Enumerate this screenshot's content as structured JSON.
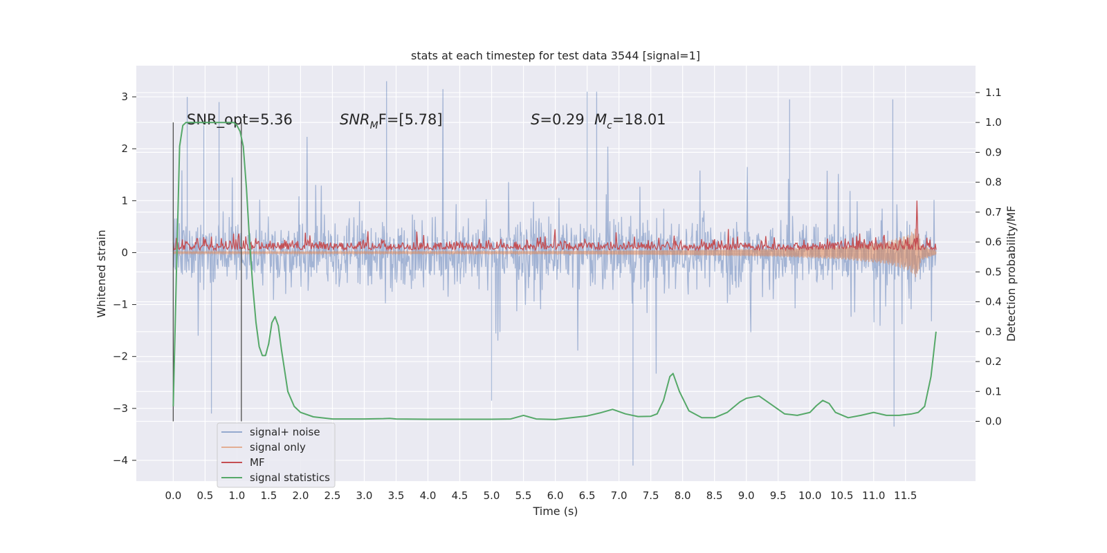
{
  "chart_data": {
    "type": "line",
    "title": "stats at each timestep for test data 3544 [signal=1]",
    "xlabel": "Time (s)",
    "ylabel_left": "Whitened strain",
    "ylabel_right": "Detection probability/MF",
    "xlim": [
      -0.58,
      12.6
    ],
    "ylim_left": [
      -4.4,
      3.6
    ],
    "ylim_right": [
      -0.2,
      1.19
    ],
    "x_ticks": [
      "0.0",
      "0.5",
      "1.0",
      "1.5",
      "2.0",
      "2.5",
      "3.0",
      "3.5",
      "4.0",
      "4.5",
      "5.0",
      "5.5",
      "6.0",
      "6.5",
      "7.0",
      "7.5",
      "8.0",
      "8.5",
      "9.0",
      "9.5",
      "10.0",
      "10.5",
      "11.0",
      "11.5"
    ],
    "y_ticks_left": [
      "3",
      "2",
      "1",
      "0",
      "−1",
      "−2",
      "−3",
      "−4"
    ],
    "y_ticks_right": [
      "1.1",
      "1.0",
      "0.9",
      "0.8",
      "0.7",
      "0.6",
      "0.5",
      "0.4",
      "0.3",
      "0.2",
      "0.1",
      "0.0"
    ],
    "grid": true,
    "legend_position": "lower-left",
    "annotations": {
      "snr_opt": "SNR_opt=5.36",
      "snr_mf_main": "SNR",
      "snr_mf_sub": "M",
      "snr_mf_tail": "F=[5.78]",
      "s_label": "S",
      "s_value": "=0.29",
      "mc_label": "M",
      "mc_sub": "c",
      "mc_value": "=18.01"
    },
    "vertical_markers": [
      0.0,
      1.07
    ],
    "series": [
      {
        "name": "signal+ noise",
        "color": "#4c72b0",
        "axis": "left",
        "style": "dense noise",
        "x_range": [
          0.0,
          11.98
        ],
        "typical_band": [
          -1.35,
          1.35
        ],
        "extreme_peaks": [
          {
            "x": 0.22,
            "y": 3.0
          },
          {
            "x": 0.48,
            "y": 2.45
          },
          {
            "x": 0.6,
            "y": -3.1
          },
          {
            "x": 0.72,
            "y": 2.9
          },
          {
            "x": 3.35,
            "y": 3.3
          },
          {
            "x": 5.0,
            "y": -2.85
          },
          {
            "x": 6.5,
            "y": 3.1
          },
          {
            "x": 6.65,
            "y": 3.1
          },
          {
            "x": 7.22,
            "y": -4.1
          },
          {
            "x": 9.68,
            "y": 2.95
          },
          {
            "x": 11.3,
            "y": 2.95
          },
          {
            "x": 11.32,
            "y": -3.35
          }
        ]
      },
      {
        "name": "signal only",
        "color": "#dd8452",
        "axis": "left",
        "style": "chirp",
        "x_range": [
          0.0,
          11.98
        ],
        "amplitude": [
          {
            "x": 0.0,
            "a": 0.02
          },
          {
            "x": 6.0,
            "a": 0.03
          },
          {
            "x": 8.0,
            "a": 0.05
          },
          {
            "x": 9.5,
            "a": 0.08
          },
          {
            "x": 10.5,
            "a": 0.13
          },
          {
            "x": 11.2,
            "a": 0.22
          },
          {
            "x": 11.55,
            "a": 0.35
          },
          {
            "x": 11.68,
            "a": 0.5
          },
          {
            "x": 11.75,
            "a": 0.15
          },
          {
            "x": 11.98,
            "a": 0.04
          }
        ]
      },
      {
        "name": "MF",
        "color": "#c44e52",
        "axis": "left",
        "style": "noisy band",
        "x_range": [
          0.0,
          11.98
        ],
        "baseline": 0.05,
        "typical_max": 0.5,
        "peaks": [
          {
            "x": 11.68,
            "y": 1.0
          }
        ]
      },
      {
        "name": "signal statistics",
        "color": "#55a868",
        "axis": "right",
        "x": [
          0.0,
          0.05,
          0.1,
          0.15,
          0.2,
          0.3,
          0.5,
          0.8,
          0.95,
          1.0,
          1.05,
          1.1,
          1.15,
          1.2,
          1.25,
          1.3,
          1.35,
          1.4,
          1.45,
          1.5,
          1.55,
          1.6,
          1.65,
          1.7,
          1.8,
          1.9,
          2.0,
          2.2,
          2.5,
          3.0,
          3.3,
          3.4,
          3.5,
          4.0,
          4.5,
          5.0,
          5.3,
          5.5,
          5.7,
          6.0,
          6.5,
          6.7,
          6.9,
          7.1,
          7.3,
          7.5,
          7.6,
          7.7,
          7.8,
          7.85,
          7.95,
          8.1,
          8.3,
          8.5,
          8.7,
          8.9,
          9.0,
          9.2,
          9.4,
          9.6,
          9.8,
          10.0,
          10.1,
          10.2,
          10.3,
          10.4,
          10.6,
          10.8,
          11.0,
          11.2,
          11.4,
          11.6,
          11.7,
          11.8,
          11.9,
          11.98
        ],
        "y": [
          0.05,
          0.5,
          0.92,
          0.99,
          1.0,
          1.0,
          1.0,
          1.0,
          1.0,
          0.99,
          0.97,
          0.92,
          0.78,
          0.6,
          0.45,
          0.33,
          0.25,
          0.22,
          0.22,
          0.26,
          0.33,
          0.35,
          0.32,
          0.24,
          0.1,
          0.05,
          0.03,
          0.015,
          0.008,
          0.008,
          0.009,
          0.01,
          0.008,
          0.007,
          0.007,
          0.007,
          0.008,
          0.02,
          0.008,
          0.006,
          0.018,
          0.028,
          0.04,
          0.025,
          0.016,
          0.017,
          0.025,
          0.07,
          0.15,
          0.16,
          0.1,
          0.035,
          0.012,
          0.012,
          0.03,
          0.065,
          0.077,
          0.085,
          0.055,
          0.025,
          0.02,
          0.03,
          0.052,
          0.07,
          0.06,
          0.03,
          0.012,
          0.02,
          0.03,
          0.02,
          0.02,
          0.025,
          0.03,
          0.05,
          0.15,
          0.3
        ]
      }
    ]
  }
}
